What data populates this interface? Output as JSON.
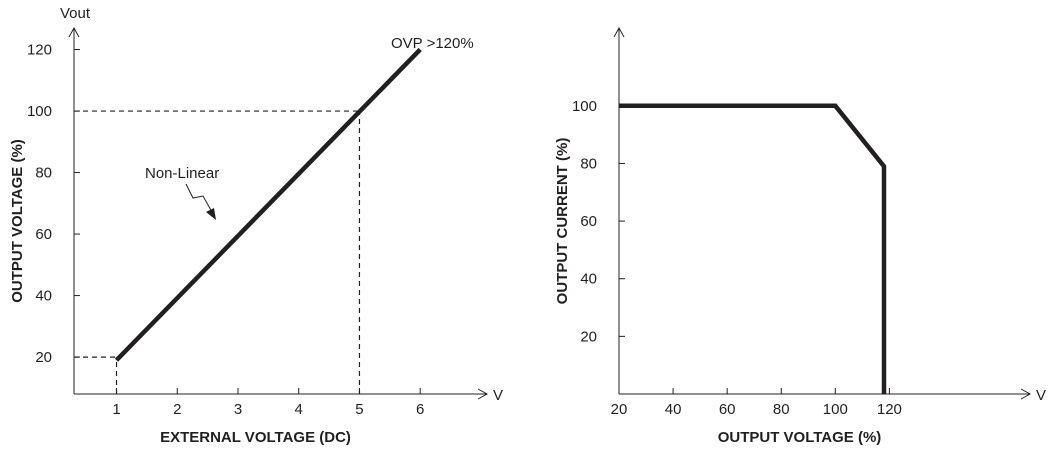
{
  "chart_data": [
    {
      "type": "line",
      "xlabel": "EXTERNAL VOLTAGE (DC)",
      "ylabel": "OUTPUT VOLTAGE (%)",
      "x_unit": "V",
      "y_unit": "Vout",
      "xlim": [
        0.3,
        7.1
      ],
      "ylim": [
        8,
        127
      ],
      "x_ticks": [
        1,
        2,
        3,
        4,
        5,
        6
      ],
      "y_ticks": [
        20,
        40,
        60,
        80,
        100,
        120
      ],
      "series": [
        {
          "x": [
            1,
            6
          ],
          "y": [
            19,
            120
          ]
        }
      ],
      "reference_lines": [
        {
          "from": [
            0.3,
            20
          ],
          "to": [
            1,
            20
          ]
        },
        {
          "from": [
            1,
            8
          ],
          "to": [
            1,
            20
          ]
        },
        {
          "from": [
            0.3,
            100
          ],
          "to": [
            5,
            100
          ]
        },
        {
          "from": [
            5,
            8
          ],
          "to": [
            5,
            100
          ]
        }
      ],
      "annotations": [
        {
          "text": "OVP >120%"
        },
        {
          "text": "Non-Linear"
        }
      ],
      "grid": false,
      "color": "#231f20"
    },
    {
      "type": "line",
      "xlabel": "OUTPUT VOLTAGE (%)",
      "ylabel": "OUTPUT CURRENT (%)",
      "x_unit": "V",
      "xlim": [
        20,
        172
      ],
      "ylim": [
        0,
        127
      ],
      "x_ticks": [
        20,
        40,
        60,
        80,
        100,
        120
      ],
      "y_ticks": [
        20,
        40,
        60,
        80,
        100
      ],
      "series": [
        {
          "x": [
            20,
            100,
            118,
            118
          ],
          "y": [
            100,
            100,
            79,
            0
          ]
        }
      ],
      "grid": false,
      "color": "#231f20"
    }
  ]
}
